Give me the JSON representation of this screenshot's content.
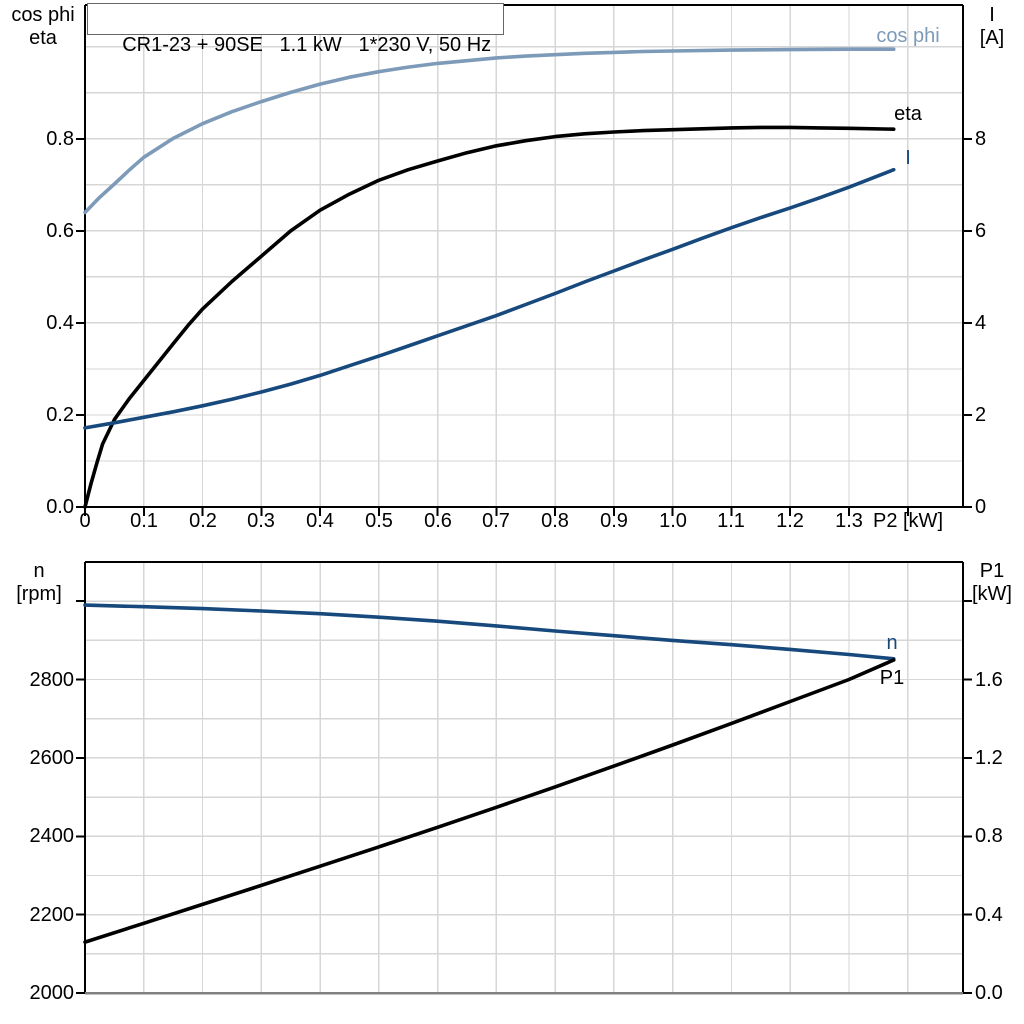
{
  "title": "CR1-23 + 90SE   1.1 kW   1*230 V, 50 Hz",
  "colors": {
    "cos_phi_curve": "#7D9BB9",
    "current_curve": "#17497D",
    "black_curve": "#000000",
    "grid": "#D6D6D6",
    "axis": "#000000",
    "bottom_border_gray": "#808080"
  },
  "chart_data": [
    {
      "type": "line",
      "title": "CR1-23 + 90SE   1.1 kW   1*230 V, 50 Hz",
      "xlabel": "P2 [kW]",
      "ylabel_left": "cos phi / eta",
      "ylabel_right": "I [A]",
      "ylabel_left_lines": [
        "cos phi",
        "eta"
      ],
      "ylabel_right_lines": [
        "I",
        "[A]"
      ],
      "xlim": [
        0,
        1.494
      ],
      "ylim_left": [
        0,
        1.091
      ],
      "ylim_right": [
        0,
        10.91
      ],
      "grid_x_step": 0.1,
      "grid_y_step": 0.1,
      "grid": true,
      "legend_position": "curve-end-labels",
      "xticks": [
        {
          "v": 0,
          "l": "0"
        },
        {
          "v": 0.1,
          "l": "0.1"
        },
        {
          "v": 0.2,
          "l": "0.2"
        },
        {
          "v": 0.3,
          "l": "0.3"
        },
        {
          "v": 0.4,
          "l": "0.4"
        },
        {
          "v": 0.5,
          "l": "0.5"
        },
        {
          "v": 0.6,
          "l": "0.6"
        },
        {
          "v": 0.7,
          "l": "0.7"
        },
        {
          "v": 0.8,
          "l": "0.8"
        },
        {
          "v": 0.9,
          "l": "0.9"
        },
        {
          "v": 1.0,
          "l": "1.0"
        },
        {
          "v": 1.1,
          "l": "1.1"
        },
        {
          "v": 1.2,
          "l": "1.2"
        },
        {
          "v": 1.3,
          "l": "1.3"
        },
        {
          "v": 1.4,
          "l": ""
        }
      ],
      "yticks_left": [
        {
          "v": 0,
          "l": "0.0"
        },
        {
          "v": 0.2,
          "l": "0.2"
        },
        {
          "v": 0.4,
          "l": "0.4"
        },
        {
          "v": 0.6,
          "l": "0.6"
        },
        {
          "v": 0.8,
          "l": "0.8"
        }
      ],
      "yticks_right": [
        {
          "v": 0,
          "l": "0"
        },
        {
          "v": 2,
          "l": "2"
        },
        {
          "v": 4,
          "l": "4"
        },
        {
          "v": 6,
          "l": "6"
        },
        {
          "v": 8,
          "l": "8"
        }
      ],
      "series": [
        {
          "name": "cos phi",
          "axis": "left",
          "color": "#7D9BB9",
          "points": [
            [
              0,
              0.64
            ],
            [
              0.025,
              0.673
            ],
            [
              0.05,
              0.702
            ],
            [
              0.075,
              0.732
            ],
            [
              0.1,
              0.76
            ],
            [
              0.15,
              0.801
            ],
            [
              0.2,
              0.833
            ],
            [
              0.25,
              0.859
            ],
            [
              0.3,
              0.881
            ],
            [
              0.35,
              0.901
            ],
            [
              0.4,
              0.919
            ],
            [
              0.45,
              0.934
            ],
            [
              0.5,
              0.946
            ],
            [
              0.55,
              0.956
            ],
            [
              0.6,
              0.964
            ],
            [
              0.65,
              0.97
            ],
            [
              0.7,
              0.976
            ],
            [
              0.75,
              0.98
            ],
            [
              0.8,
              0.983
            ],
            [
              0.85,
              0.986
            ],
            [
              0.9,
              0.988
            ],
            [
              0.95,
              0.99
            ],
            [
              1.0,
              0.991
            ],
            [
              1.1,
              0.993
            ],
            [
              1.2,
              0.994
            ],
            [
              1.3,
              0.995
            ],
            [
              1.376,
              0.995
            ]
          ]
        },
        {
          "name": "eta",
          "axis": "left",
          "color": "#000000",
          "points": [
            [
              0,
              0
            ],
            [
              0.01,
              0.05
            ],
            [
              0.02,
              0.095
            ],
            [
              0.03,
              0.137
            ],
            [
              0.05,
              0.19
            ],
            [
              0.075,
              0.235
            ],
            [
              0.1,
              0.275
            ],
            [
              0.125,
              0.315
            ],
            [
              0.15,
              0.355
            ],
            [
              0.175,
              0.394
            ],
            [
              0.2,
              0.43
            ],
            [
              0.25,
              0.49
            ],
            [
              0.3,
              0.545
            ],
            [
              0.35,
              0.6
            ],
            [
              0.4,
              0.645
            ],
            [
              0.45,
              0.68
            ],
            [
              0.5,
              0.71
            ],
            [
              0.55,
              0.733
            ],
            [
              0.6,
              0.752
            ],
            [
              0.65,
              0.77
            ],
            [
              0.7,
              0.785
            ],
            [
              0.75,
              0.796
            ],
            [
              0.8,
              0.805
            ],
            [
              0.85,
              0.811
            ],
            [
              0.9,
              0.815
            ],
            [
              0.95,
              0.818
            ],
            [
              1.0,
              0.82
            ],
            [
              1.05,
              0.822
            ],
            [
              1.1,
              0.824
            ],
            [
              1.15,
              0.825
            ],
            [
              1.2,
              0.825
            ],
            [
              1.25,
              0.824
            ],
            [
              1.3,
              0.823
            ],
            [
              1.376,
              0.821
            ]
          ]
        },
        {
          "name": "I",
          "axis": "right",
          "color": "#17497D",
          "points": [
            [
              0,
              1.72
            ],
            [
              0.05,
              1.83
            ],
            [
              0.1,
              1.95
            ],
            [
              0.15,
              2.07
            ],
            [
              0.2,
              2.2
            ],
            [
              0.25,
              2.34
            ],
            [
              0.3,
              2.5
            ],
            [
              0.35,
              2.67
            ],
            [
              0.4,
              2.86
            ],
            [
              0.45,
              3.07
            ],
            [
              0.5,
              3.28
            ],
            [
              0.55,
              3.5
            ],
            [
              0.6,
              3.72
            ],
            [
              0.65,
              3.94
            ],
            [
              0.7,
              4.16
            ],
            [
              0.75,
              4.4
            ],
            [
              0.8,
              4.64
            ],
            [
              0.85,
              4.89
            ],
            [
              0.9,
              5.13
            ],
            [
              0.95,
              5.37
            ],
            [
              1.0,
              5.6
            ],
            [
              1.05,
              5.84
            ],
            [
              1.1,
              6.07
            ],
            [
              1.15,
              6.29
            ],
            [
              1.2,
              6.5
            ],
            [
              1.25,
              6.72
            ],
            [
              1.3,
              6.95
            ],
            [
              1.376,
              7.33
            ]
          ]
        }
      ]
    },
    {
      "type": "line",
      "xlabel": "P2 [kW]",
      "ylabel_left": "n [rpm]",
      "ylabel_right": "P1 [kW]",
      "ylabel_left_lines": [
        "n",
        "[rpm]"
      ],
      "ylabel_right_lines": [
        "P1",
        "[kW]"
      ],
      "xlim": [
        0,
        1.494
      ],
      "ylim_left": [
        2000,
        3100
      ],
      "ylim_right": [
        0,
        2.2
      ],
      "grid_x_step": 0.1,
      "grid_y_step": 100,
      "grid": true,
      "legend_position": "curve-end-labels",
      "xticks": [],
      "yticks_left": [
        {
          "v": 2000,
          "l": "2000"
        },
        {
          "v": 2200,
          "l": "2200"
        },
        {
          "v": 2400,
          "l": "2400"
        },
        {
          "v": 2600,
          "l": "2600"
        },
        {
          "v": 2800,
          "l": "2800"
        },
        {
          "v": 3000,
          "l": ""
        }
      ],
      "yticks_right": [
        {
          "v": 0,
          "l": "0.0"
        },
        {
          "v": 0.4,
          "l": "0.4"
        },
        {
          "v": 0.8,
          "l": "0.8"
        },
        {
          "v": 1.2,
          "l": "1.2"
        },
        {
          "v": 1.6,
          "l": "1.6"
        },
        {
          "v": 2.0,
          "l": ""
        }
      ],
      "series": [
        {
          "name": "n",
          "axis": "left",
          "color": "#17497D",
          "points": [
            [
              0,
              2990
            ],
            [
              0.1,
              2986
            ],
            [
              0.2,
              2981
            ],
            [
              0.3,
              2975
            ],
            [
              0.4,
              2968
            ],
            [
              0.5,
              2959
            ],
            [
              0.6,
              2949
            ],
            [
              0.7,
              2937
            ],
            [
              0.8,
              2924
            ],
            [
              0.9,
              2912
            ],
            [
              1.0,
              2900
            ],
            [
              1.1,
              2889
            ],
            [
              1.2,
              2877
            ],
            [
              1.3,
              2864
            ],
            [
              1.376,
              2853
            ]
          ]
        },
        {
          "name": "P1",
          "axis": "right",
          "color": "#000000",
          "points": [
            [
              0,
              0.26
            ],
            [
              0.1,
              0.356
            ],
            [
              0.2,
              0.452
            ],
            [
              0.3,
              0.549
            ],
            [
              0.4,
              0.647
            ],
            [
              0.5,
              0.746
            ],
            [
              0.6,
              0.846
            ],
            [
              0.7,
              0.948
            ],
            [
              0.8,
              1.052
            ],
            [
              0.9,
              1.158
            ],
            [
              1.0,
              1.266
            ],
            [
              1.1,
              1.376
            ],
            [
              1.2,
              1.488
            ],
            [
              1.3,
              1.6
            ],
            [
              1.376,
              1.7
            ]
          ]
        }
      ]
    }
  ]
}
